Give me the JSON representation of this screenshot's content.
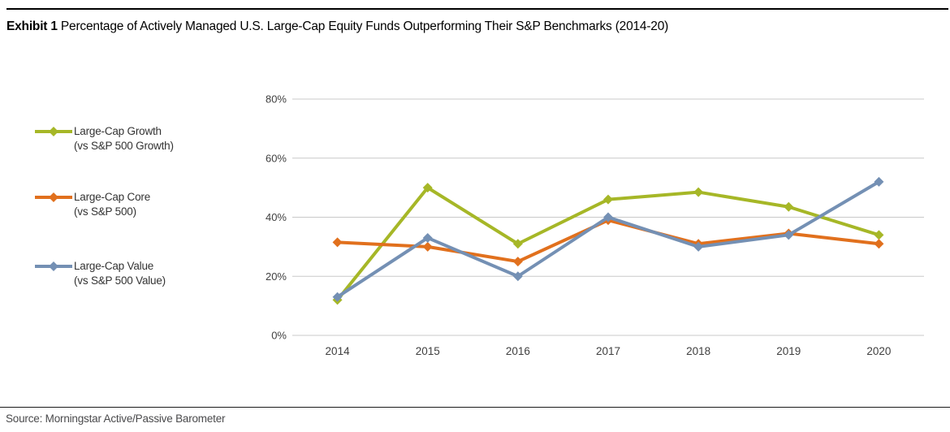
{
  "header": {
    "exhibit_label": "Exhibit 1",
    "title": "Percentage of Actively Managed U.S. Large-Cap Equity Funds Outperforming Their S&P Benchmarks (2014-20)"
  },
  "footer": {
    "source": "Source: Morningstar Active/Passive Barometer"
  },
  "colors": {
    "growth_series": "#A6B727",
    "core_series": "#E1701D",
    "value_series": "#7490B4",
    "gridline": "#C9C9C9",
    "axis_text": "#404040",
    "rule": "#000000"
  },
  "chart_data": {
    "type": "line",
    "title": "Exhibit 1 Percentage of Actively Managed U.S. Large-Cap Equity Funds Outperforming Their S&P Benchmarks (2014-20)",
    "categories": [
      "2014",
      "2015",
      "2016",
      "2017",
      "2018",
      "2019",
      "2020"
    ],
    "series": [
      {
        "name": "Large-Cap Growth",
        "benchmark": "(vs S&P 500 Growth)",
        "color": "#A6B727",
        "values": [
          12,
          50,
          31,
          46,
          48.5,
          43.5,
          34
        ]
      },
      {
        "name": "Large-Cap Core",
        "benchmark": "(vs S&P 500)",
        "color": "#E1701D",
        "values": [
          31.5,
          30,
          25,
          39,
          31,
          34.5,
          31
        ]
      },
      {
        "name": "Large-Cap Value",
        "benchmark": "(vs S&P 500 Value)",
        "color": "#7490B4",
        "values": [
          13,
          33,
          20,
          40,
          30,
          34,
          52
        ]
      }
    ],
    "xlabel": "",
    "ylabel": "",
    "ylim": [
      0,
      80
    ],
    "ytick_step": 20,
    "ytick_suffix": "%",
    "grid": true,
    "legend_position": "left",
    "marker": "diamond"
  }
}
